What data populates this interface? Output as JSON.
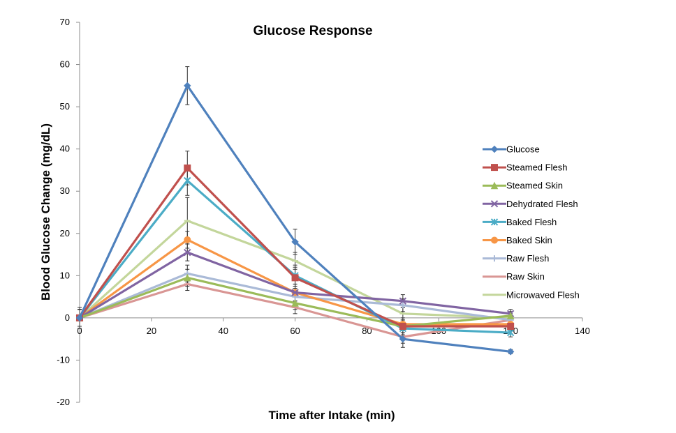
{
  "chart_data": {
    "type": "line",
    "title": "Glucose Response",
    "xlabel": "Time after Intake (min)",
    "ylabel": "Blood Glucose Change (mg/dL)",
    "xlim": [
      0,
      140
    ],
    "ylim": [
      -20,
      70
    ],
    "x_ticks": [
      0,
      20,
      40,
      60,
      80,
      100,
      120,
      140
    ],
    "y_ticks": [
      -20,
      -10,
      0,
      10,
      20,
      30,
      40,
      50,
      60,
      70
    ],
    "grid": false,
    "legend_position": "right",
    "x": [
      0,
      30,
      60,
      90,
      120
    ],
    "series": [
      {
        "name": "Glucose",
        "color": "#4f81bd",
        "marker": "diamond",
        "values": [
          0,
          55,
          18,
          -5,
          -8
        ],
        "errors": [
          2.5,
          4.5,
          3,
          2,
          0.5
        ]
      },
      {
        "name": "Steamed Flesh",
        "color": "#c0504d",
        "marker": "square",
        "values": [
          0,
          35.5,
          9.5,
          -2,
          -2
        ],
        "errors": [
          2,
          4,
          2.5,
          1.5,
          1
        ]
      },
      {
        "name": "Steamed Skin",
        "color": "#9bbb59",
        "marker": "triangle",
        "values": [
          0,
          9.5,
          3.5,
          -2,
          0.5
        ],
        "errors": [
          2,
          2,
          1.5,
          1.5,
          1
        ]
      },
      {
        "name": "Dehydrated Flesh",
        "color": "#8064a2",
        "marker": "x",
        "values": [
          0,
          15.5,
          6,
          4,
          1
        ],
        "errors": [
          2,
          2,
          2,
          1.5,
          1
        ]
      },
      {
        "name": "Baked Flesh",
        "color": "#4bacc6",
        "marker": "star",
        "values": [
          0,
          32.5,
          10,
          -2.5,
          -3.5
        ],
        "errors": [
          2,
          3.5,
          2.5,
          1.5,
          1
        ]
      },
      {
        "name": "Baked Skin",
        "color": "#f79646",
        "marker": "circle",
        "values": [
          0,
          18.5,
          6,
          -1.5,
          -1.5
        ],
        "errors": [
          2,
          2,
          2,
          1.5,
          1
        ]
      },
      {
        "name": "Raw Flesh",
        "color": "#aabad7",
        "marker": "plus",
        "values": [
          0,
          10.5,
          5,
          3,
          -0.5
        ],
        "errors": [
          2,
          2,
          2,
          1.5,
          1
        ]
      },
      {
        "name": "Raw  Skin",
        "color": "#d99694",
        "marker": "dash",
        "values": [
          0,
          8,
          2.5,
          -4.5,
          -0.5
        ],
        "errors": [
          2,
          1.5,
          1.5,
          1.5,
          1
        ]
      },
      {
        "name": "Microwaved Flesh",
        "color": "#c3d69b",
        "marker": "dash",
        "values": [
          0,
          23,
          13.5,
          1,
          0
        ],
        "errors": [
          2,
          5.5,
          2,
          1.5,
          1
        ]
      }
    ]
  }
}
